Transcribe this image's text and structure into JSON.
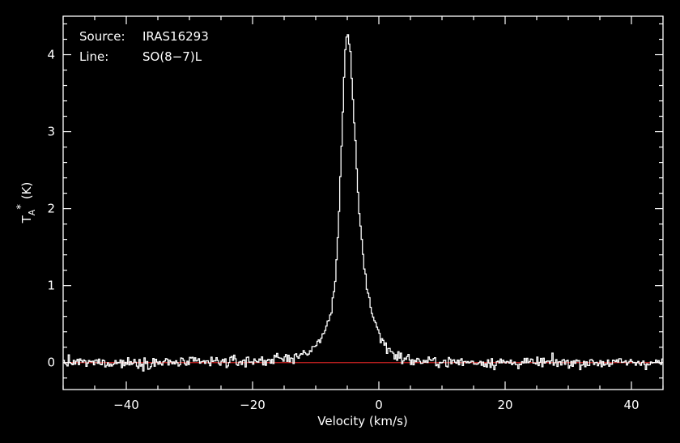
{
  "chart_data": {
    "type": "line",
    "xlabel": "Velocity (km/s)",
    "ylabel": {
      "base": "T",
      "sub": "A",
      "sup": "*",
      "unit": "(K)"
    },
    "xlim": [
      -50,
      45
    ],
    "ylim": [
      -0.35,
      4.5
    ],
    "x_ticks": [
      -40,
      -20,
      0,
      20,
      40
    ],
    "y_ticks": [
      0,
      1,
      2,
      3,
      4
    ],
    "x_tick_labels": [
      "−40",
      "−20",
      "0",
      "20",
      "40"
    ],
    "y_tick_labels": [
      "0",
      "1",
      "2",
      "3",
      "4"
    ],
    "grid": false,
    "annotations": [
      {
        "key": "Source:",
        "value": "IRAS16293"
      },
      {
        "key": "Line:",
        "value": "SO(8−7)L"
      }
    ],
    "baseline": {
      "y": 0,
      "color": "#cc2222"
    },
    "colors": {
      "background": "#000000",
      "axes": "#ffffff",
      "spectrum": "#ffffff"
    },
    "series": [
      {
        "style": "histogram",
        "line": {
          "x": [
            -50,
            -40,
            -30,
            -20,
            -15,
            -12,
            -10,
            -9,
            -8,
            -7.5,
            -7,
            -6.5,
            -6,
            -5.5,
            -5.2,
            -5.0,
            -4.8,
            -4.5,
            -4.0,
            -3.5,
            -3.0,
            -2.5,
            -2.0,
            -1.5,
            -1.0,
            0,
            1,
            2,
            3,
            4,
            6,
            10,
            20,
            30,
            40,
            45
          ],
          "y": [
            0,
            0,
            0,
            0.02,
            0.05,
            0.1,
            0.2,
            0.35,
            0.5,
            0.7,
            1.0,
            1.6,
            2.6,
            3.7,
            4.15,
            4.27,
            4.2,
            3.95,
            3.3,
            2.5,
            1.85,
            1.4,
            1.05,
            0.82,
            0.62,
            0.38,
            0.22,
            0.14,
            0.08,
            0.05,
            0.02,
            0.01,
            0,
            0,
            0,
            0
          ]
        }
      }
    ]
  }
}
